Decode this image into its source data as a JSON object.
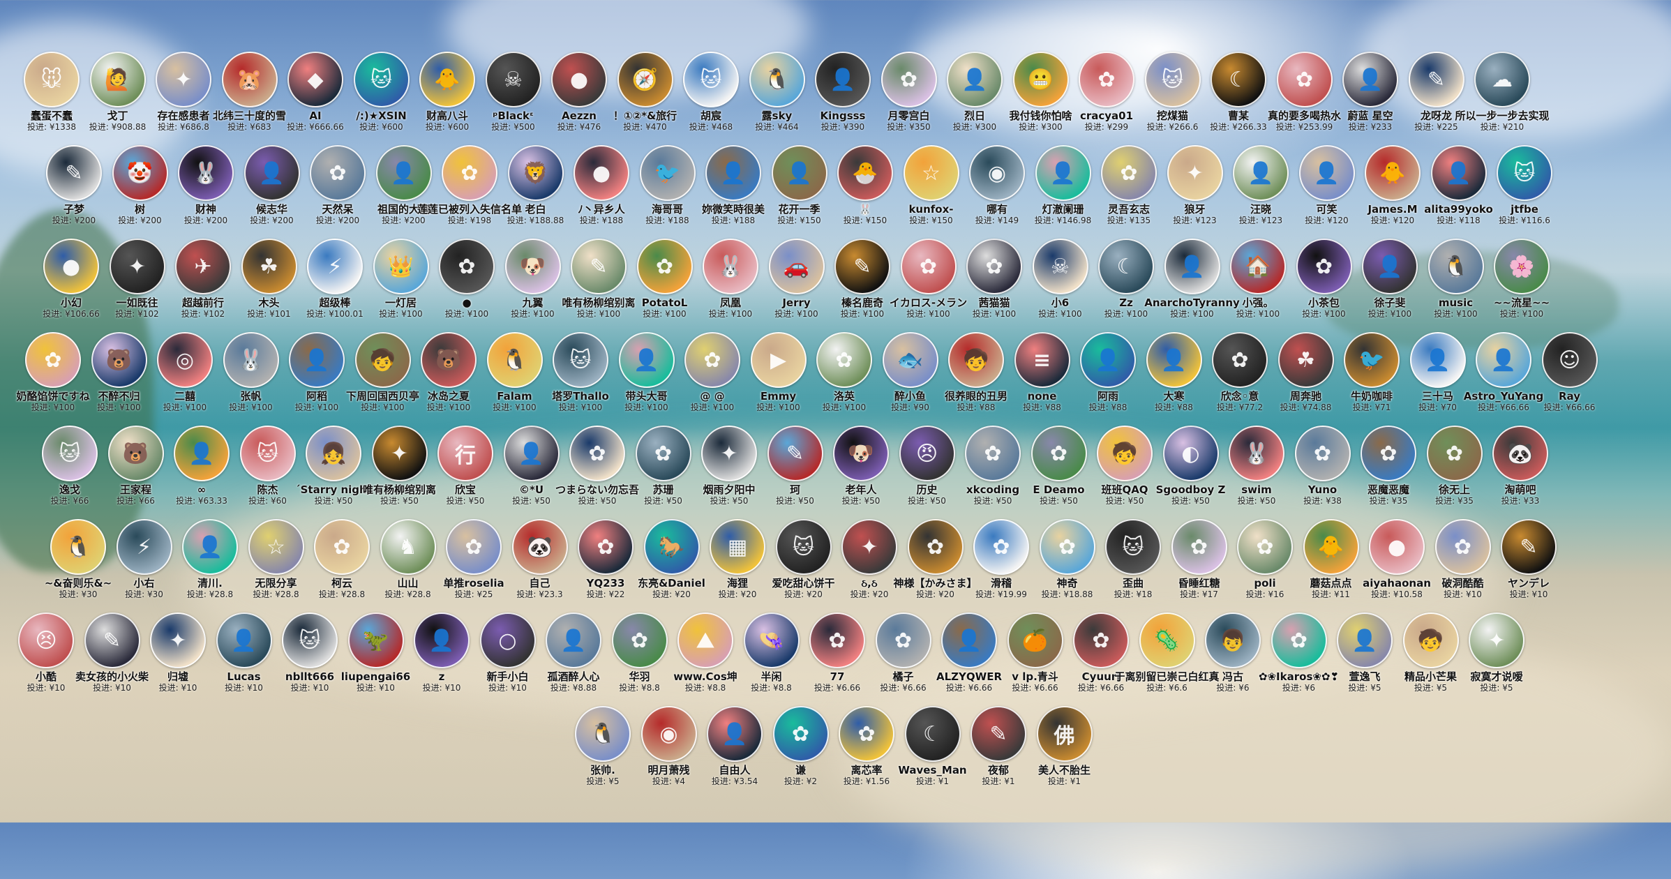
{
  "rows": [
    [
      {
        "name": "蠢蛋不蠢",
        "amount": "投进: ¥1338",
        "glyph": "🐭"
      },
      {
        "name": "戈丁",
        "amount": "投进: ¥908.88",
        "glyph": "🙋"
      },
      {
        "name": "存在感患者",
        "amount": "投进: ¥686.8",
        "glyph": "✦"
      },
      {
        "name": "北纬三十度的雪",
        "amount": "投进: ¥683",
        "glyph": "🐹"
      },
      {
        "name": "AI",
        "amount": "投进: ¥666.66",
        "glyph": "◆"
      },
      {
        "name": "/:)★XSIN",
        "amount": "投进: ¥600",
        "glyph": "🐱"
      },
      {
        "name": "财高八斗",
        "amount": "投进: ¥600",
        "glyph": "🐥"
      },
      {
        "name": "ᵖBlackᵋ",
        "amount": "投进: ¥500",
        "glyph": "☠"
      },
      {
        "name": "Aezzn",
        "amount": "投进: ¥476",
        "glyph": "●"
      },
      {
        "name": "！①②*&旅行",
        "amount": "投进: ¥470",
        "glyph": "🧭"
      },
      {
        "name": "胡宸",
        "amount": "投进: ¥468",
        "glyph": "🐱"
      },
      {
        "name": "露sky",
        "amount": "投进: ¥464",
        "glyph": "🐧"
      },
      {
        "name": "Kingsss",
        "amount": "投进: ¥390",
        "glyph": "👤"
      },
      {
        "name": "月零宫白",
        "amount": "投进: ¥350",
        "glyph": "✿"
      },
      {
        "name": "烈日",
        "amount": "投进: ¥300",
        "glyph": "👤"
      },
      {
        "name": "我付钱你怕啥",
        "amount": "投进: ¥300",
        "glyph": "😬"
      },
      {
        "name": "cracya01",
        "amount": "投进: ¥299",
        "glyph": "✿"
      },
      {
        "name": "挖煤猫",
        "amount": "投进: ¥266.6",
        "glyph": "🐱"
      },
      {
        "name": "曹某",
        "amount": "投进: ¥266.33",
        "glyph": "☾"
      },
      {
        "name": "真的要多喝热水",
        "amount": "投进: ¥253.99",
        "glyph": "✿"
      },
      {
        "name": "蔚蓝 星空",
        "amount": "投进: ¥233",
        "glyph": "👤"
      },
      {
        "name": "龙呀龙",
        "amount": "投进: ¥225",
        "glyph": "✎"
      },
      {
        "name": "所以一步一步去实现",
        "amount": "投进: ¥210",
        "glyph": "☁"
      }
    ],
    [
      {
        "name": "子梦",
        "amount": "投进: ¥200",
        "glyph": "✎"
      },
      {
        "name": "树",
        "amount": "投进: ¥200",
        "glyph": "🤡"
      },
      {
        "name": "财神",
        "amount": "投进: ¥200",
        "glyph": "🐰"
      },
      {
        "name": "候志华",
        "amount": "投进: ¥200",
        "glyph": "👤"
      },
      {
        "name": "天然呆",
        "amount": "投进: ¥200",
        "glyph": "✿"
      },
      {
        "name": "祖国的大炮",
        "amount": "投进: ¥200",
        "glyph": "👤"
      },
      {
        "name": "莲莲已被列入失信名单",
        "amount": "投进: ¥198",
        "glyph": "✿"
      },
      {
        "name": "老白",
        "amount": "投进: ¥188.88",
        "glyph": "🦁"
      },
      {
        "name": "ﾉ丶异乡人",
        "amount": "投进: ¥188",
        "glyph": "●"
      },
      {
        "name": "海哥哥",
        "amount": "投进: ¥188",
        "glyph": "🐦"
      },
      {
        "name": "妳微笑時很美",
        "amount": "投进: ¥188",
        "glyph": "👤"
      },
      {
        "name": "花开一季",
        "amount": "投进: ¥150",
        "glyph": "👤"
      },
      {
        "name": "🐰",
        "amount": "投进: ¥150",
        "glyph": "🐣"
      },
      {
        "name": "kunfox-",
        "amount": "投进: ¥150",
        "glyph": "☆"
      },
      {
        "name": "哪有",
        "amount": "投进: ¥149",
        "glyph": "◉"
      },
      {
        "name": "灯澈阑珊",
        "amount": "投进: ¥146.98",
        "glyph": "👤"
      },
      {
        "name": "灵吾玄志",
        "amount": "投进: ¥135",
        "glyph": "✿"
      },
      {
        "name": "狼牙",
        "amount": "投进: ¥123",
        "glyph": "✦"
      },
      {
        "name": "汪晓",
        "amount": "投进: ¥123",
        "glyph": "👤"
      },
      {
        "name": "可笑",
        "amount": "投进: ¥120",
        "glyph": "👤"
      },
      {
        "name": "James.M",
        "amount": "投进: ¥120",
        "glyph": "🐥"
      },
      {
        "name": "alita99yoko",
        "amount": "投进: ¥118",
        "glyph": "👤"
      },
      {
        "name": "jtfbe",
        "amount": "投进: ¥116.6",
        "glyph": "🐱"
      }
    ],
    [
      {
        "name": "小幻",
        "amount": "投进: ¥106.66",
        "glyph": "●"
      },
      {
        "name": "一如既往",
        "amount": "投进: ¥102",
        "glyph": "✦"
      },
      {
        "name": "超越前行",
        "amount": "投进: ¥102",
        "glyph": "✈"
      },
      {
        "name": "木头",
        "amount": "投进: ¥101",
        "glyph": "☘"
      },
      {
        "name": "超级棒",
        "amount": "投进: ¥100.01",
        "glyph": "⚡"
      },
      {
        "name": "一灯居",
        "amount": "投进: ¥100",
        "glyph": "👑"
      },
      {
        "name": "●",
        "amount": "投进: ¥100",
        "glyph": "✿"
      },
      {
        "name": "九翼",
        "amount": "投进: ¥100",
        "glyph": "🐶"
      },
      {
        "name": "唯有杨柳绾别离",
        "amount": "投进: ¥100",
        "glyph": "✎"
      },
      {
        "name": "PotatoL",
        "amount": "投进: ¥100",
        "glyph": "✿"
      },
      {
        "name": "凤凰",
        "amount": "投进: ¥100",
        "glyph": "🐰"
      },
      {
        "name": "Jerry",
        "amount": "投进: ¥100",
        "glyph": "🚗"
      },
      {
        "name": "榛名鹿奇",
        "amount": "投进: ¥100",
        "glyph": "✎"
      },
      {
        "name": "イカロス-メラン",
        "amount": "投进: ¥100",
        "glyph": "✿"
      },
      {
        "name": "茜猫猫",
        "amount": "投进: ¥100",
        "glyph": "✿"
      },
      {
        "name": "小6",
        "amount": "投进: ¥100",
        "glyph": "☠"
      },
      {
        "name": "Zz",
        "amount": "投进: ¥100",
        "glyph": "☾"
      },
      {
        "name": "AnarchoTyranny",
        "amount": "投进: ¥100",
        "glyph": "👤"
      },
      {
        "name": "小强。",
        "amount": "投进: ¥100",
        "glyph": "🏠"
      },
      {
        "name": "小茶包",
        "amount": "投进: ¥100",
        "glyph": "✿"
      },
      {
        "name": "徐子斐",
        "amount": "投进: ¥100",
        "glyph": "👤"
      },
      {
        "name": "music",
        "amount": "投进: ¥100",
        "glyph": "🐧"
      },
      {
        "name": "~~流星~~",
        "amount": "投进: ¥100",
        "glyph": "🌸"
      }
    ],
    [
      {
        "name": "奶酪馅饼ですね",
        "amount": "投进: ¥100",
        "glyph": "✿"
      },
      {
        "name": "不醉不归",
        "amount": "投进: ¥100",
        "glyph": "🐻"
      },
      {
        "name": "二囍",
        "amount": "投进: ¥100",
        "glyph": "◎"
      },
      {
        "name": "张帆",
        "amount": "投进: ¥100",
        "glyph": "🐰"
      },
      {
        "name": "阿稻",
        "amount": "投进: ¥100",
        "glyph": "👤"
      },
      {
        "name": "下周回国西贝亭",
        "amount": "投进: ¥100",
        "glyph": "🧒"
      },
      {
        "name": "冰岛之夏",
        "amount": "投进: ¥100",
        "glyph": "🐻"
      },
      {
        "name": "Falam",
        "amount": "投进: ¥100",
        "glyph": "🐧"
      },
      {
        "name": "塔罗Thallo",
        "amount": "投进: ¥100",
        "glyph": "🐱"
      },
      {
        "name": "带头大哥",
        "amount": "投进: ¥100",
        "glyph": "👤"
      },
      {
        "name": "@ @",
        "amount": "投进: ¥100",
        "glyph": "✿"
      },
      {
        "name": "Emmy",
        "amount": "投进: ¥100",
        "glyph": "▶"
      },
      {
        "name": "洛英",
        "amount": "投进: ¥100",
        "glyph": "✿"
      },
      {
        "name": "醉小鱼",
        "amount": "投进: ¥90",
        "glyph": "🐟"
      },
      {
        "name": "很养眼的丑男",
        "amount": "投进: ¥88",
        "glyph": "🧒"
      },
      {
        "name": "none",
        "amount": "投进: ¥88",
        "glyph": "≡"
      },
      {
        "name": "阿雨",
        "amount": "投进: ¥88",
        "glyph": "👤"
      },
      {
        "name": "大寒",
        "amount": "投进: ¥88",
        "glyph": "👤"
      },
      {
        "name": "欣念◦意",
        "amount": "投进: ¥77.2",
        "glyph": "✿"
      },
      {
        "name": "周奔驰",
        "amount": "投进: ¥74.88",
        "glyph": "☘"
      },
      {
        "name": "牛奶咖啡",
        "amount": "投进: ¥71",
        "glyph": "🐦"
      },
      {
        "name": "三十马",
        "amount": "投进: ¥70",
        "glyph": "👤"
      },
      {
        "name": "Astro_YuYang",
        "amount": "投进: ¥66.66",
        "glyph": "👤"
      },
      {
        "name": "Ray",
        "amount": "投进: ¥66.66",
        "glyph": "☺"
      }
    ],
    [
      {
        "name": "逸戈",
        "amount": "投进: ¥66",
        "glyph": "🐱"
      },
      {
        "name": "王家程",
        "amount": "投进: ¥66",
        "glyph": "🐻"
      },
      {
        "name": "∞",
        "amount": "投进: ¥63.33",
        "glyph": "👤"
      },
      {
        "name": "陈杰",
        "amount": "投进: ¥60",
        "glyph": "🐱"
      },
      {
        "name": "ˊStarry night",
        "amount": "投进: ¥50",
        "glyph": "👧"
      },
      {
        "name": "唯有杨柳绾别离",
        "amount": "投进: ¥50",
        "glyph": "✦"
      },
      {
        "name": "欣宝",
        "amount": "投进: ¥50",
        "glyph": "行"
      },
      {
        "name": "©*U",
        "amount": "投进: ¥50",
        "glyph": "👤"
      },
      {
        "name": "つまらない勿忘吾",
        "amount": "投进: ¥50",
        "glyph": "✿"
      },
      {
        "name": "苏珊",
        "amount": "投进: ¥50",
        "glyph": "✿"
      },
      {
        "name": "烟雨夕阳中",
        "amount": "投进: ¥50",
        "glyph": "✦"
      },
      {
        "name": "珂",
        "amount": "投进: ¥50",
        "glyph": "✎"
      },
      {
        "name": "老年人",
        "amount": "投进: ¥50",
        "glyph": "🐶"
      },
      {
        "name": "历史",
        "amount": "投进: ¥50",
        "glyph": "😠"
      },
      {
        "name": "xkcoding",
        "amount": "投进: ¥50",
        "glyph": "✿"
      },
      {
        "name": "E Deamo",
        "amount": "投进: ¥50",
        "glyph": "✿"
      },
      {
        "name": "班班QAQ",
        "amount": "投进: ¥50",
        "glyph": "🧒"
      },
      {
        "name": "Sgoodboy Z",
        "amount": "投进: ¥50",
        "glyph": "◐"
      },
      {
        "name": "swim",
        "amount": "投进: ¥50",
        "glyph": "🐰"
      },
      {
        "name": "Yuno",
        "amount": "投进: ¥38",
        "glyph": "✿"
      },
      {
        "name": "恶魔恶魔",
        "amount": "投进: ¥35",
        "glyph": "✿"
      },
      {
        "name": "徐无上",
        "amount": "投进: ¥35",
        "glyph": "✿"
      },
      {
        "name": "淘萌吧",
        "amount": "投进: ¥33",
        "glyph": "🐼"
      }
    ],
    [
      {
        "name": "~&奋则乐&~",
        "amount": "投进: ¥30",
        "glyph": "🐧"
      },
      {
        "name": "小右",
        "amount": "投进: ¥30",
        "glyph": "⚡"
      },
      {
        "name": "清川.",
        "amount": "投进: ¥28.8",
        "glyph": "👤"
      },
      {
        "name": "无限分享",
        "amount": "投进: ¥28.8",
        "glyph": "☆"
      },
      {
        "name": "柯云",
        "amount": "投进: ¥28.8",
        "glyph": "✿"
      },
      {
        "name": "山山",
        "amount": "投进: ¥28.8",
        "glyph": "♞"
      },
      {
        "name": "单推roselia",
        "amount": "投进: ¥25",
        "glyph": "✿"
      },
      {
        "name": "自己",
        "amount": "投进: ¥23.3",
        "glyph": "🐼"
      },
      {
        "name": "YQ233",
        "amount": "投进: ¥22",
        "glyph": "✿"
      },
      {
        "name": "东亮&Daniel",
        "amount": "投进: ¥20",
        "glyph": "🐎"
      },
      {
        "name": "海狸",
        "amount": "投进: ¥20",
        "glyph": "▦"
      },
      {
        "name": "爱吃甜心饼干",
        "amount": "投进: ¥20",
        "glyph": "🐱"
      },
      {
        "name": "ઠ,ઠ",
        "amount": "投进: ¥20",
        "glyph": "✦"
      },
      {
        "name": "神様【かみさま】",
        "amount": "投进: ¥20",
        "glyph": "✿"
      },
      {
        "name": "滑稽",
        "amount": "投进: ¥19.99",
        "glyph": "✿"
      },
      {
        "name": "神奇",
        "amount": "投进: ¥18.88",
        "glyph": "✿"
      },
      {
        "name": "歪曲",
        "amount": "投进: ¥18",
        "glyph": "🐱"
      },
      {
        "name": "昏睡红糖",
        "amount": "投进: ¥17",
        "glyph": "✿"
      },
      {
        "name": "poli",
        "amount": "投进: ¥16",
        "glyph": "✿"
      },
      {
        "name": "蘑菇点点",
        "amount": "投进: ¥11",
        "glyph": "🐥"
      },
      {
        "name": "aiyahaonan",
        "amount": "投进: ¥10.58",
        "glyph": "●"
      },
      {
        "name": "破洞酷酷",
        "amount": "投进: ¥10",
        "glyph": "✿"
      },
      {
        "name": "ヤンデレ",
        "amount": "投进: ¥10",
        "glyph": "✎"
      }
    ],
    [
      {
        "name": "小酷",
        "amount": "投进: ¥10",
        "glyph": "😣"
      },
      {
        "name": "卖女孩的小火柴",
        "amount": "投进: ¥10",
        "glyph": "✎"
      },
      {
        "name": "归墟",
        "amount": "投进: ¥10",
        "glyph": "✦"
      },
      {
        "name": "Lucas",
        "amount": "投进: ¥10",
        "glyph": "👤"
      },
      {
        "name": "nbllt666",
        "amount": "投进: ¥10",
        "glyph": "🐱"
      },
      {
        "name": "liupengai66",
        "amount": "投进: ¥10",
        "glyph": "🦖"
      },
      {
        "name": "z",
        "amount": "投进: ¥10",
        "glyph": "👤"
      },
      {
        "name": "新手小白",
        "amount": "投进: ¥10",
        "glyph": "○"
      },
      {
        "name": "孤酒醉人心",
        "amount": "投进: ¥8.88",
        "glyph": "👤"
      },
      {
        "name": "华羽",
        "amount": "投进: ¥8.8",
        "glyph": "✿"
      },
      {
        "name": "www.Cos坤",
        "amount": "投进: ¥8.8",
        "glyph": "⛰"
      },
      {
        "name": "半闲",
        "amount": "投进: ¥8.8",
        "glyph": "👒"
      },
      {
        "name": "77",
        "amount": "投进: ¥6.66",
        "glyph": "✿"
      },
      {
        "name": "橘子",
        "amount": "投进: ¥6.66",
        "glyph": "✿"
      },
      {
        "name": "ALZYQWER",
        "amount": "投进: ¥6.66",
        "glyph": "👤"
      },
      {
        "name": "v lp.青斗",
        "amount": "投进: ¥6.66",
        "glyph": "🍊"
      },
      {
        "name": "Cyuuri",
        "amount": "投进: ¥6.66",
        "glyph": "✿"
      },
      {
        "name": "于离别留已崇己白红真",
        "amount": "投进: ¥6.6",
        "glyph": "🦠"
      },
      {
        "name": "冯古",
        "amount": "投进: ¥6",
        "glyph": "👦"
      },
      {
        "name": "✿❀Ikaros❀✿❣",
        "amount": "投进: ¥6",
        "glyph": "✿"
      },
      {
        "name": "萱逸飞",
        "amount": "投进: ¥5",
        "glyph": "👤"
      },
      {
        "name": "精品小芒果",
        "amount": "投进: ¥5",
        "glyph": "🧒"
      },
      {
        "name": "寂寞才说嗳",
        "amount": "投进: ¥5",
        "glyph": "✦"
      }
    ],
    [
      {
        "name": "张帅.",
        "amount": "投进: ¥5",
        "glyph": "🐧"
      },
      {
        "name": "明月萧残",
        "amount": "投进: ¥4",
        "glyph": "◉"
      },
      {
        "name": "自由人",
        "amount": "投进: ¥3.54",
        "glyph": "👤"
      },
      {
        "name": "谦",
        "amount": "投进: ¥2",
        "glyph": "✿"
      },
      {
        "name": "离芯率",
        "amount": "投进: ¥1.56",
        "glyph": "✿"
      },
      {
        "name": "Waves_Man",
        "amount": "投进: ¥1",
        "glyph": "☾"
      },
      {
        "name": "夜郁",
        "amount": "投进: ¥1",
        "glyph": "✎"
      },
      {
        "name": "美人不胎生",
        "amount": "投进: ¥1",
        "glyph": "佛"
      }
    ]
  ],
  "palette": [
    "#e8d2a0",
    "#6f8f5a",
    "#7a8fc8",
    "#caa98a",
    "#1b2a3a",
    "#2f5da8",
    "#f0c23a",
    "#222",
    "#3a3a3a",
    "#c88a30",
    "#f3f3f3",
    "#5aa7d8",
    "#555",
    "#d9c0e3",
    "#6a8a6a",
    "#f2a23a",
    "#e8b8c0",
    "#d8c0a0",
    "#111",
    "#c05050",
    "#2a2a3a",
    "#f0e0c8",
    "#2a4a5a",
    "#ddd",
    "#b52a2a",
    "#7b5cb0",
    "#333",
    "#5a7a9a",
    "#4a8a4a",
    "#d8a0b0",
    "#1a3a6a",
    "#f08080",
    "#b0b0b0",
    "#3a7ac0",
    "#8a6a4a",
    "#c85a5a",
    "#e0d070",
    "#9ab0c0",
    "#1abc9c",
    "#88a"
  ]
}
